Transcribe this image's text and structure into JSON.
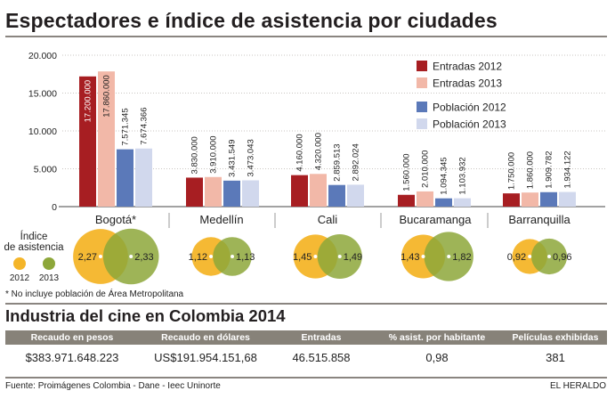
{
  "title": "Espectadores e índice de asistencia por ciudades",
  "chart_data": {
    "type": "bar",
    "title": "Espectadores e índice de asistencia por ciudades",
    "categories": [
      "Bogotá*",
      "Medellín",
      "Cali",
      "Bucaramanga",
      "Barranquilla"
    ],
    "ylim": [
      0,
      20000000
    ],
    "yticks": [
      0,
      5000000,
      10000000,
      15000000,
      20000000
    ],
    "ytick_labels": [
      "0",
      "5.000",
      "10.000",
      "15.000",
      "20.000"
    ],
    "grid": true,
    "legend_position": "top-right",
    "series": [
      {
        "name": "Entradas 2012",
        "color": "#a71e22",
        "values": [
          17200000,
          3830000,
          4160000,
          1560000,
          1750000
        ],
        "labels": [
          "17.200.000",
          "3.830.000",
          "4.160.000",
          "1.560.000",
          "1.750.000"
        ]
      },
      {
        "name": "Entradas 2013",
        "color": "#f2b8a8",
        "values": [
          17860000,
          3910000,
          4320000,
          2010000,
          1860000
        ],
        "labels": [
          "17.860.000",
          "3.910.000",
          "4.320.000",
          "2.010.000",
          "1.860.000"
        ]
      },
      {
        "name": "Población 2012",
        "color": "#5b79b9",
        "values": [
          7571345,
          3431549,
          2859513,
          1094345,
          1909782
        ],
        "labels": [
          "7.571.345",
          "3.431.549",
          "2.859.513",
          "1.094.345",
          "1.909.782"
        ]
      },
      {
        "name": "Población 2013",
        "color": "#d1d8ed",
        "values": [
          7674366,
          3473043,
          2892024,
          1103932,
          1934122
        ],
        "labels": [
          "7.674.366",
          "3.473.043",
          "2.892.024",
          "1.103.932",
          "1.934.122"
        ]
      }
    ],
    "attendance": {
      "title": "Índice de asistencia",
      "year_labels": [
        "2012",
        "2013"
      ],
      "colors": [
        "#f4b529",
        "#8da73a"
      ],
      "values_2012": [
        2.27,
        1.12,
        1.45,
        1.43,
        0.92
      ],
      "values_2013": [
        2.33,
        1.13,
        1.49,
        1.82,
        0.96
      ],
      "labels_2012": [
        "2,27",
        "1,12",
        "1,45",
        "1,43",
        "0,92"
      ],
      "labels_2013": [
        "2,33",
        "1,13",
        "1,49",
        "1,82",
        "0,96"
      ]
    }
  },
  "footnote": "* No incluye población de Área Metropolitana",
  "industry": {
    "title": "Industria del cine en Colombia 2014",
    "headers": [
      "Recaudo en pesos",
      "Recaudo en dólares",
      "Entradas",
      "% asist. por habitante",
      "Películas exhibidas"
    ],
    "values": [
      "$383.971.648.223",
      "US$191.954.151,68",
      "46.515.858",
      "0,98",
      "381"
    ]
  },
  "source": "Fuente: Proimágenes Colombia - Dane - Ieec Uninorte",
  "credit": "EL HERALDO"
}
